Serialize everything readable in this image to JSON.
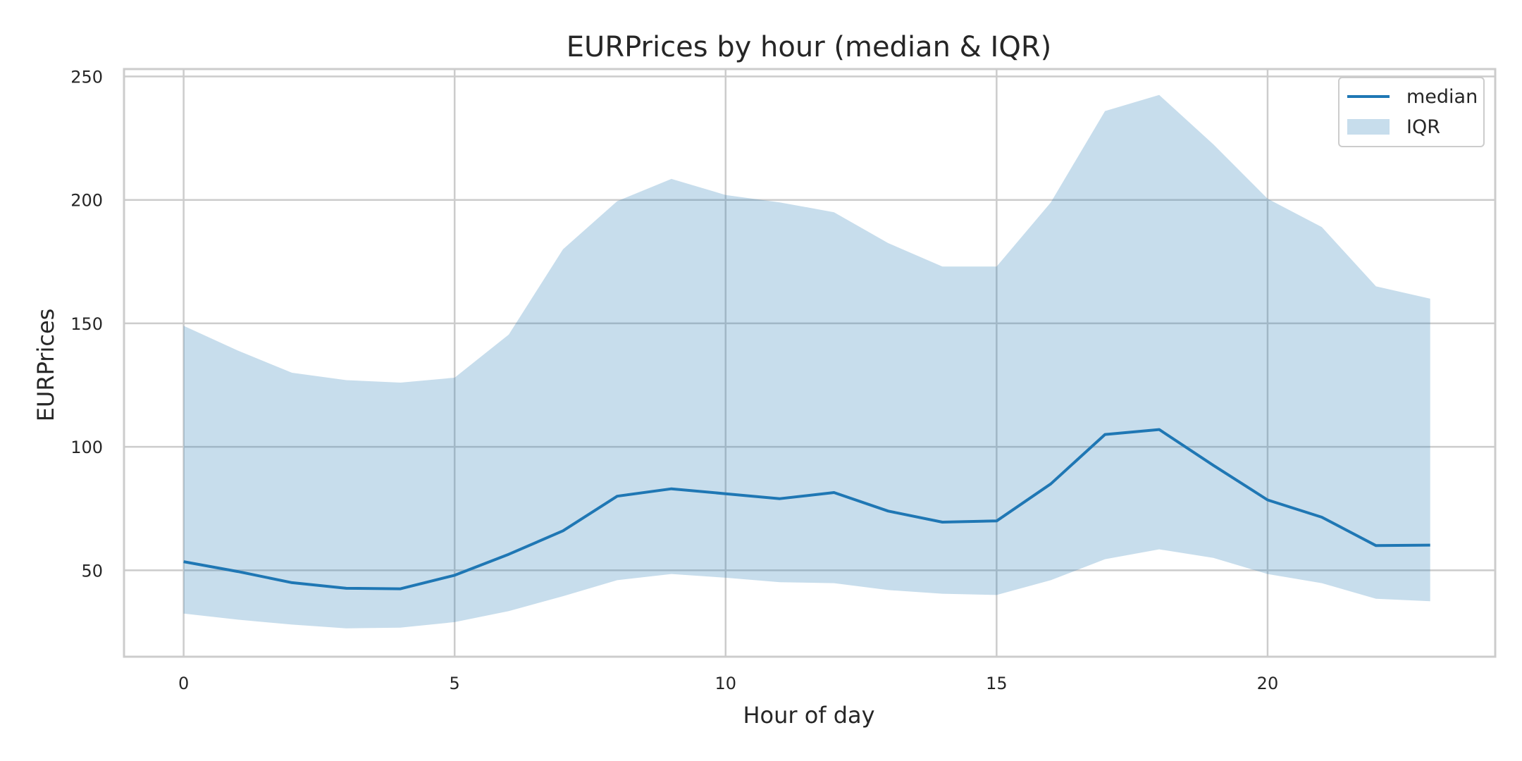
{
  "chart_data": {
    "type": "line",
    "title": "EURPrices by hour (median & IQR)",
    "xlabel": "Hour of day",
    "ylabel": "EURPrices",
    "xlim": [
      -1.1,
      24.2
    ],
    "ylim": [
      15,
      253
    ],
    "xticks": [
      0,
      5,
      10,
      15,
      20
    ],
    "yticks": [
      50,
      100,
      150,
      200,
      250
    ],
    "grid": true,
    "legend": {
      "position": "top-right",
      "entries": [
        "median",
        "IQR"
      ]
    },
    "colors": {
      "median": "#1f77b4",
      "iqr": "#1f77b4",
      "grid": "#cccccc",
      "frame": "#cccccc"
    },
    "x": [
      0,
      1,
      2,
      3,
      4,
      5,
      6,
      7,
      8,
      9,
      10,
      11,
      12,
      13,
      14,
      15,
      16,
      17,
      18,
      19,
      20,
      21,
      22,
      23
    ],
    "series": [
      {
        "name": "median",
        "values": [
          53.5,
          49.5,
          45,
          42.7,
          42.5,
          48,
          56.5,
          66,
          80,
          83,
          81,
          79,
          81.5,
          74,
          69.5,
          70,
          85,
          105,
          107,
          92.5,
          78.5,
          71.5,
          60,
          60.2
        ]
      }
    ],
    "band": {
      "name": "IQR",
      "lower": [
        32.5,
        30,
        28,
        26.5,
        26.8,
        29,
        33.5,
        39.5,
        46,
        48.5,
        47,
        45.2,
        44.8,
        42,
        40.5,
        40,
        46,
        54.5,
        58.5,
        55,
        48.5,
        44.8,
        38.5,
        37.5
      ],
      "upper": [
        149,
        139,
        130,
        127,
        126,
        128,
        145.5,
        180,
        199.5,
        208.5,
        202,
        199,
        195,
        182.5,
        173,
        173,
        199,
        236,
        242.5,
        222.5,
        200.5,
        189,
        165,
        160
      ]
    }
  }
}
